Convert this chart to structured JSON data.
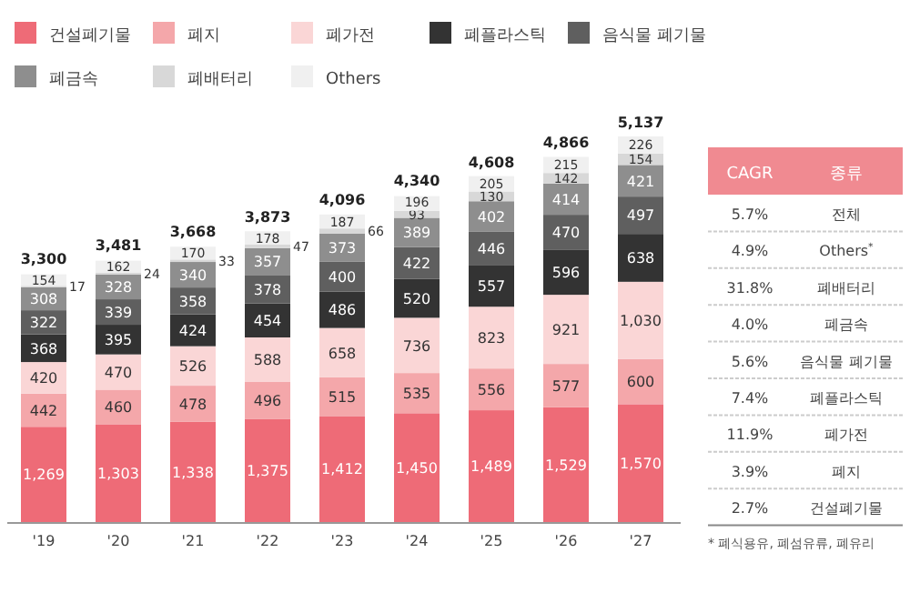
{
  "chart_data": [
    {
      "type": "bar",
      "stacked": true,
      "data_labels": true,
      "legend": "top left",
      "grid": false,
      "categories": [
        "'19",
        "'20",
        "'21",
        "'22",
        "'23",
        "'24",
        "'25",
        "'26",
        "'27"
      ],
      "series": [
        {
          "name": "건설폐기물",
          "color": "#ee6b77",
          "values": [
            1269,
            1303,
            1338,
            1375,
            1412,
            1450,
            1489,
            1529,
            1570
          ],
          "value_labels": [
            "1,269",
            "1,303",
            "1,338",
            "1,375",
            "1,412",
            "1,450",
            "1,489",
            "1,529",
            "1,570"
          ]
        },
        {
          "name": "폐지",
          "color": "#f4a7aa",
          "values": [
            442,
            460,
            478,
            496,
            515,
            535,
            556,
            577,
            600
          ]
        },
        {
          "name": "폐가전",
          "color": "#fad6d6",
          "values": [
            420,
            470,
            526,
            588,
            658,
            736,
            823,
            921,
            1030
          ],
          "value_labels": [
            "420",
            "470",
            "526",
            "588",
            "658",
            "736",
            "823",
            "921",
            "1,030"
          ]
        },
        {
          "name": "폐플라스틱",
          "color": "#333333",
          "values": [
            368,
            395,
            424,
            454,
            486,
            520,
            557,
            596,
            638
          ]
        },
        {
          "name": "음식물 폐기물",
          "color": "#5f5f5f",
          "values": [
            322,
            339,
            358,
            378,
            400,
            422,
            446,
            470,
            497
          ]
        },
        {
          "name": "폐금속",
          "color": "#8e8e8e",
          "values": [
            308,
            328,
            340,
            357,
            373,
            389,
            402,
            414,
            421
          ]
        },
        {
          "name": "폐배터리",
          "color": "#d8d8d8",
          "values": [
            17,
            24,
            33,
            47,
            66,
            93,
            130,
            142,
            154
          ]
        },
        {
          "name": "Others",
          "color": "#f0f0f0",
          "values": [
            154,
            162,
            170,
            178,
            187,
            196,
            205,
            215,
            226
          ]
        }
      ],
      "totals": [
        "3,300",
        "3,481",
        "3,668",
        "3,873",
        "4,096",
        "4,340",
        "4,608",
        "4,866",
        "5,137"
      ]
    },
    {
      "type": "other",
      "annotations": [
        "CAGR",
        "종류",
        "5.7%",
        "전체",
        "4.9%",
        "Others$^{*}$",
        "31.8%",
        "폐배터리",
        "4.0%",
        "폐금속",
        "5.6%",
        "음식물 폐기물",
        "7.4%",
        "폐플라스틱",
        "11.9%",
        "폐가전",
        "3.9%",
        "폐지",
        "2.7%",
        "건설폐기물",
        "* 폐식용유, 폐섬유류, 폐유리"
      ]
    }
  ]
}
